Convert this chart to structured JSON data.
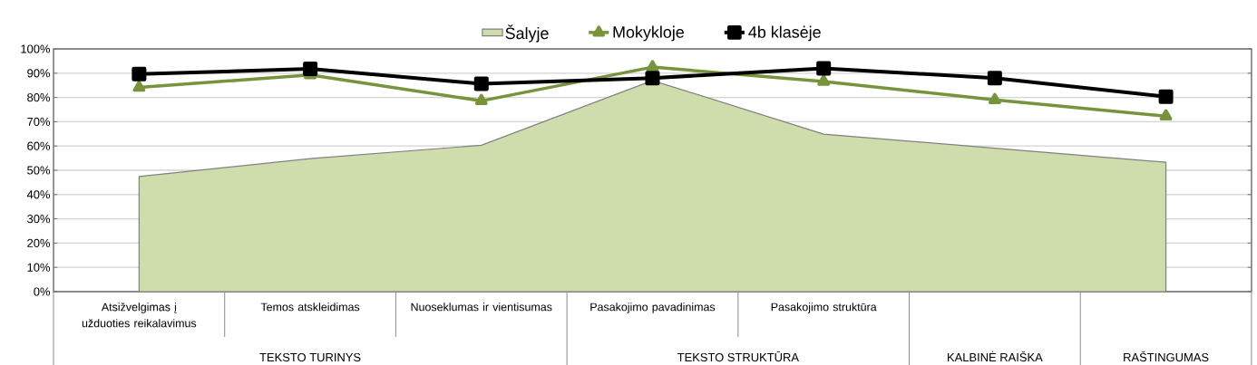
{
  "chart_data": {
    "type": "line",
    "categories": [
      "Atsižvelgimas į užduoties reikalavimus",
      "Temos atskleidimas",
      "Nuoseklumas ir vientisumas",
      "Pasakojimo pavadinimas",
      "Pasakojimo struktūra",
      null,
      null
    ],
    "series": [
      {
        "name": "Šalyje",
        "type": "area",
        "color": "#cfddac",
        "values": [
          47.4,
          54.8,
          60.3,
          87.0,
          64.9,
          59.1,
          53.3
        ]
      },
      {
        "name": "Mokykloje",
        "color": "#77933c",
        "marker": "triangle",
        "values": [
          84.1,
          89.3,
          78.6,
          92.5,
          86.6,
          79.0,
          72.3
        ]
      },
      {
        "name": "4b klasėje",
        "color": "#000000",
        "marker": "square",
        "values": [
          89.6,
          91.8,
          85.6,
          88.0,
          92.0,
          88.0,
          80.3
        ]
      }
    ],
    "ylim": [
      0,
      100
    ],
    "yticks": [
      {
        "value": 0,
        "label": "0%"
      },
      {
        "value": 10,
        "label": "10%"
      },
      {
        "value": 20,
        "label": "20%"
      },
      {
        "value": 30,
        "label": "30%"
      },
      {
        "value": 40,
        "label": "40%"
      },
      {
        "value": 50,
        "label": "50%"
      },
      {
        "value": 60,
        "label": "60%"
      },
      {
        "value": 70,
        "label": "70%"
      },
      {
        "value": 80,
        "label": "80%"
      },
      {
        "value": 90,
        "label": "90%"
      },
      {
        "value": 100,
        "label": "100%"
      }
    ],
    "annotations": [
      "TEKSTO TURINYS",
      "TEKSTO STRUKTŪRA",
      "KALBINĖ RAIŠKA",
      "RAŠTINGUMAS"
    ],
    "grid": true,
    "legend": "top"
  }
}
